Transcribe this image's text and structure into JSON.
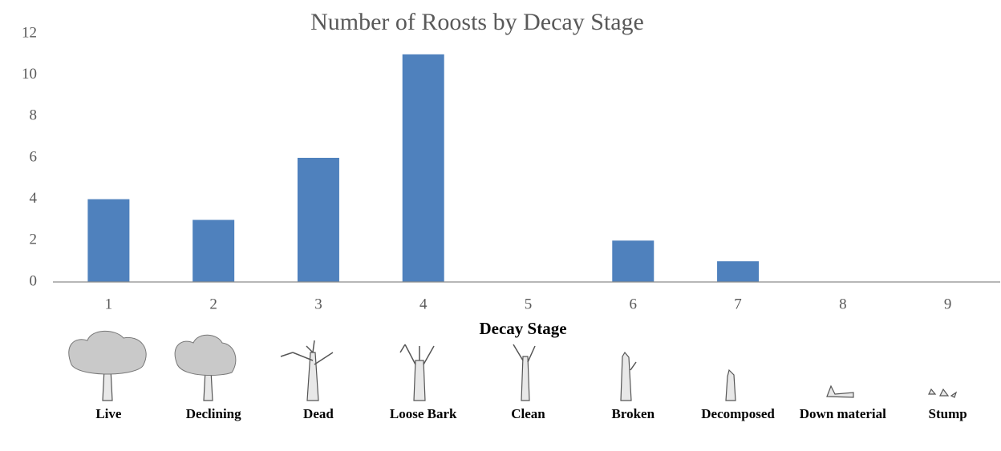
{
  "chart_data": {
    "type": "bar",
    "title": "Number of Roosts by Decay Stage",
    "x_label": "Decay Stage",
    "categories": [
      "1",
      "2",
      "3",
      "4",
      "5",
      "6",
      "7",
      "8",
      "9"
    ],
    "values": [
      4,
      3,
      6,
      11,
      0,
      2,
      1,
      0,
      0
    ],
    "color": "#4f81bd",
    "ylim": [
      0,
      12
    ],
    "yticks": [
      0,
      2,
      4,
      6,
      8,
      10,
      12
    ],
    "grid": false,
    "illustration_labels": [
      "Live",
      "Declining",
      "Dead",
      "Loose Bark",
      "Clean",
      "Broken",
      "Decomposed",
      "Down material",
      "Stump"
    ]
  }
}
